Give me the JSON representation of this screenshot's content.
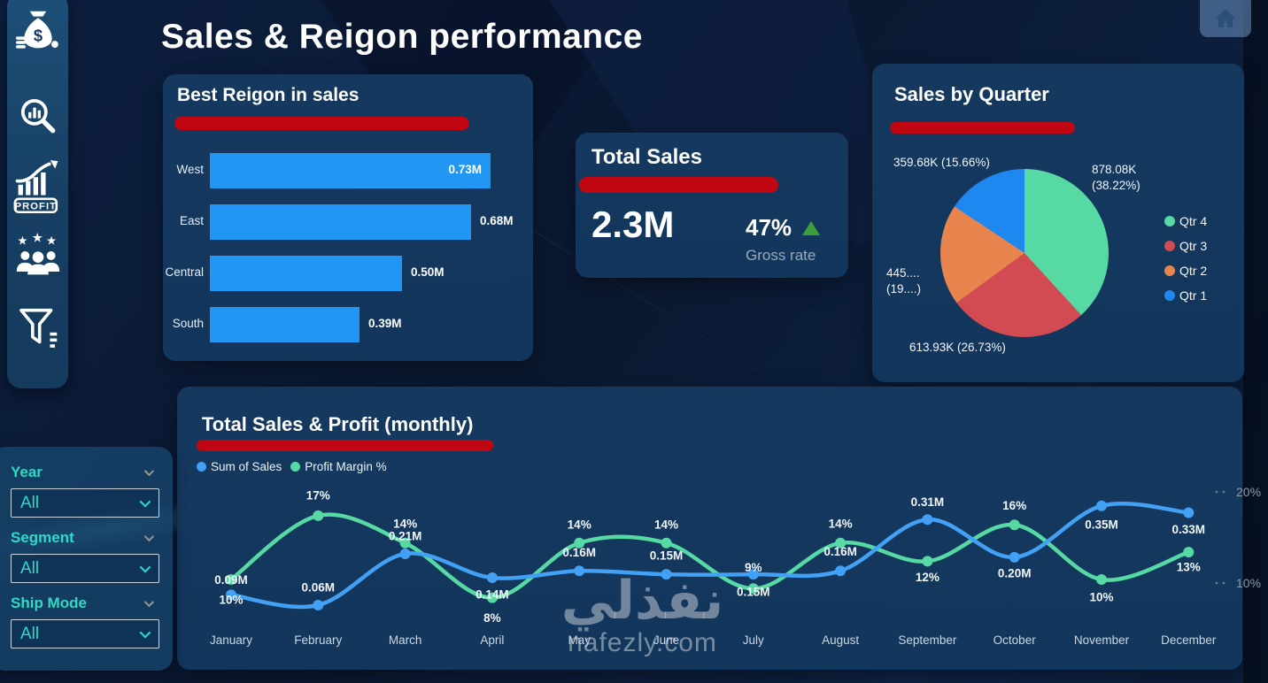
{
  "page": {
    "title": "Sales & Reigon performance"
  },
  "colors": {
    "accent_red": "#C00711",
    "bar_blue": "#2196F3",
    "line_blue": "#42A0F5",
    "line_green": "#57D9A3",
    "filter_teal": "#2FD9C7",
    "up_green": "#3E9E3C",
    "card_bg": "#12365C"
  },
  "sidebar": {
    "icons": [
      {
        "name": "money-bag-icon"
      },
      {
        "name": "chart-search-icon"
      },
      {
        "name": "profit-growth-icon",
        "label": "PROFIT"
      },
      {
        "name": "team-icon"
      },
      {
        "name": "filter-funnel-icon"
      }
    ]
  },
  "header": {
    "home_icon": "home-icon"
  },
  "filters": {
    "items": [
      {
        "label": "Year",
        "value": "All"
      },
      {
        "label": "Segment",
        "value": "All"
      },
      {
        "label": "Ship Mode",
        "value": "All"
      }
    ]
  },
  "total_sales_card": {
    "title": "Total Sales",
    "value": "2.3M",
    "rate": "47%",
    "rate_label": "Gross rate",
    "trend": "up"
  },
  "watermark": {
    "arabic": "نفذلي",
    "domain": "nafezly.com"
  },
  "chart_data": [
    {
      "id": "best_region",
      "type": "bar",
      "title": "Best Reigon in sales",
      "orientation": "horizontal",
      "categories": [
        "West",
        "East",
        "Central",
        "South"
      ],
      "values": [
        0.73,
        0.68,
        0.5,
        0.39
      ],
      "labels": [
        "0.73M",
        "0.68M",
        "0.50M",
        "0.39M"
      ],
      "xlim": [
        0,
        0.78
      ],
      "unit": "M"
    },
    {
      "id": "sales_by_quarter",
      "type": "pie",
      "title": "Sales by Quarter",
      "slices": [
        {
          "name": "Qtr 4",
          "value_k": 878.08,
          "pct": 38.22,
          "label_lines": [
            "878.08K",
            "(38.22%)"
          ],
          "color": "#57D9A3"
        },
        {
          "name": "Qtr 3",
          "value_k": 613.93,
          "pct": 26.73,
          "label_lines": [
            "613.93K (26.73%)"
          ],
          "color": "#D24A52"
        },
        {
          "name": "Qtr 2",
          "value_k": 445,
          "pct": 19.39,
          "label_lines": [
            "445....",
            "(19....)"
          ],
          "color": "#E8854F"
        },
        {
          "name": "Qtr 1",
          "value_k": 359.68,
          "pct": 15.66,
          "label_lines": [
            "359.68K (15.66%)"
          ],
          "color": "#1E88F0"
        }
      ],
      "legend_position": "right"
    },
    {
      "id": "monthly",
      "type": "line",
      "title": "Total Sales & Profit (monthly)",
      "categories": [
        "January",
        "February",
        "March",
        "April",
        "May",
        "June",
        "July",
        "August",
        "September",
        "October",
        "November",
        "December"
      ],
      "series": [
        {
          "name": "Sum of Sales",
          "color": "#42A0F5",
          "unit": "M",
          "values": [
            0.09,
            0.06,
            0.21,
            0.14,
            0.16,
            0.15,
            0.15,
            0.16,
            0.31,
            0.2,
            0.35,
            0.33
          ],
          "labels": [
            "0.09M",
            "0.06M",
            "0.21M",
            "0.14M",
            "0.16M",
            "0.15M",
            "0.15M",
            "0.16M",
            "0.31M",
            "0.20M",
            "0.35M",
            "0.33M"
          ]
        },
        {
          "name": "Profit Margin %",
          "color": "#57D9A3",
          "unit": "%",
          "values": [
            10,
            17,
            14,
            8,
            14,
            14,
            9,
            14,
            12,
            16,
            10,
            13
          ],
          "labels": [
            "10%",
            "17%",
            "14%",
            "8%",
            "14%",
            "14%",
            "9%",
            "14%",
            "12%",
            "16%",
            "10%",
            "13%"
          ]
        }
      ],
      "right_axis_ticks": [
        "20%",
        "10%"
      ],
      "right_axis_range": [
        10,
        20
      ]
    }
  ]
}
